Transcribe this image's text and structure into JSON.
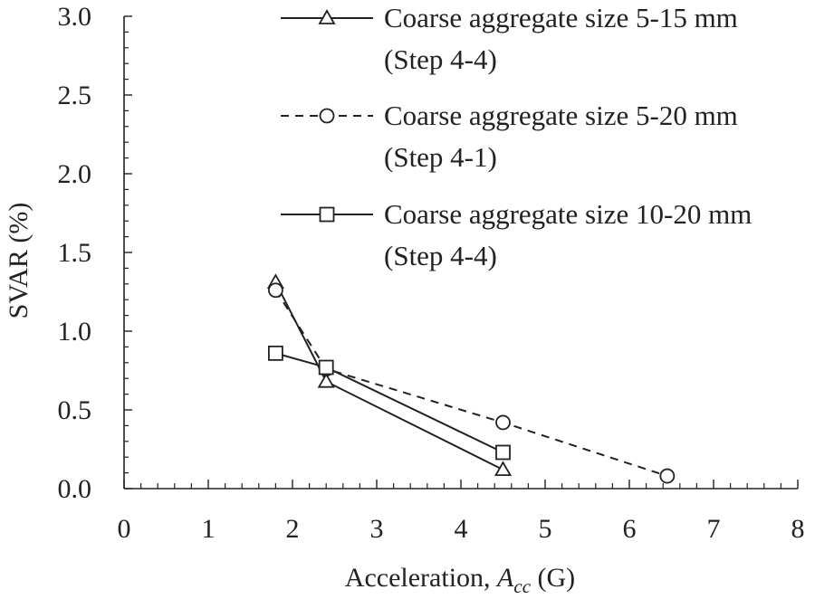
{
  "chart_data": {
    "type": "line",
    "xlabel": "Acceleration, ",
    "xlabel_italic": "A",
    "xlabel_subscript": "cc",
    "xlabel_unit": " (G)",
    "ylabel": "SVAR (%)",
    "xlim": [
      0,
      8
    ],
    "ylim": [
      0.0,
      3.0
    ],
    "x_ticks": [
      "0",
      "1",
      "2",
      "3",
      "4",
      "5",
      "6",
      "7",
      "8"
    ],
    "y_ticks": [
      "0.0",
      "0.5",
      "1.0",
      "1.5",
      "2.0",
      "2.5",
      "3.0"
    ],
    "grid": false,
    "legend_position": "top-right",
    "series": [
      {
        "name": "Coarse aggregate size 5-15 mm",
        "name_line2": "(Step 4-4)",
        "marker": "triangle",
        "line_style": "solid",
        "color": "#222222",
        "x": [
          1.8,
          2.4,
          4.5
        ],
        "y": [
          1.31,
          0.68,
          0.12
        ]
      },
      {
        "name": "Coarse aggregate size 5-20 mm",
        "name_line2": "(Step 4-1)",
        "marker": "circle",
        "line_style": "dashed",
        "color": "#222222",
        "x": [
          1.8,
          2.4,
          4.5,
          6.45
        ],
        "y": [
          1.26,
          0.76,
          0.42,
          0.08
        ]
      },
      {
        "name": "Coarse aggregate size 10-20 mm",
        "name_line2": "(Step 4-4)",
        "marker": "square",
        "line_style": "solid",
        "color": "#222222",
        "x": [
          1.8,
          2.4,
          4.5
        ],
        "y": [
          0.86,
          0.77,
          0.23
        ]
      }
    ]
  }
}
